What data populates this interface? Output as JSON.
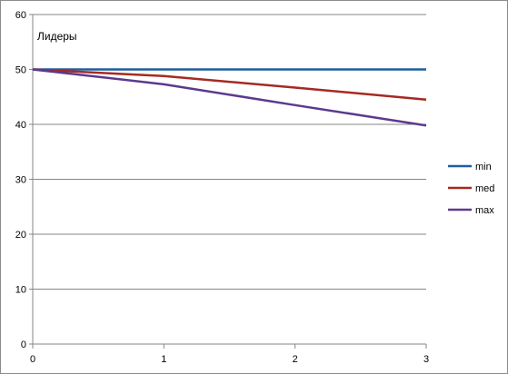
{
  "chart_data": {
    "type": "line",
    "title": "Лидеры",
    "x": [
      0,
      1,
      2,
      3
    ],
    "xlim": [
      0,
      3
    ],
    "ylim": [
      0,
      60
    ],
    "x_ticks": [
      "0",
      "1",
      "2",
      "3"
    ],
    "y_ticks": [
      "0",
      "10",
      "20",
      "30",
      "40",
      "50",
      "60"
    ],
    "grid": "horizontal",
    "legend_position": "right",
    "series": [
      {
        "name": "min",
        "color": "#1f5e9e",
        "values": [
          50,
          50,
          50,
          50
        ]
      },
      {
        "name": "med",
        "color": "#a52a22",
        "values": [
          50,
          48.8,
          46.7,
          44.5
        ]
      },
      {
        "name": "max",
        "color": "#5b3a8e",
        "values": [
          50,
          47.3,
          43.5,
          39.8
        ]
      }
    ]
  }
}
